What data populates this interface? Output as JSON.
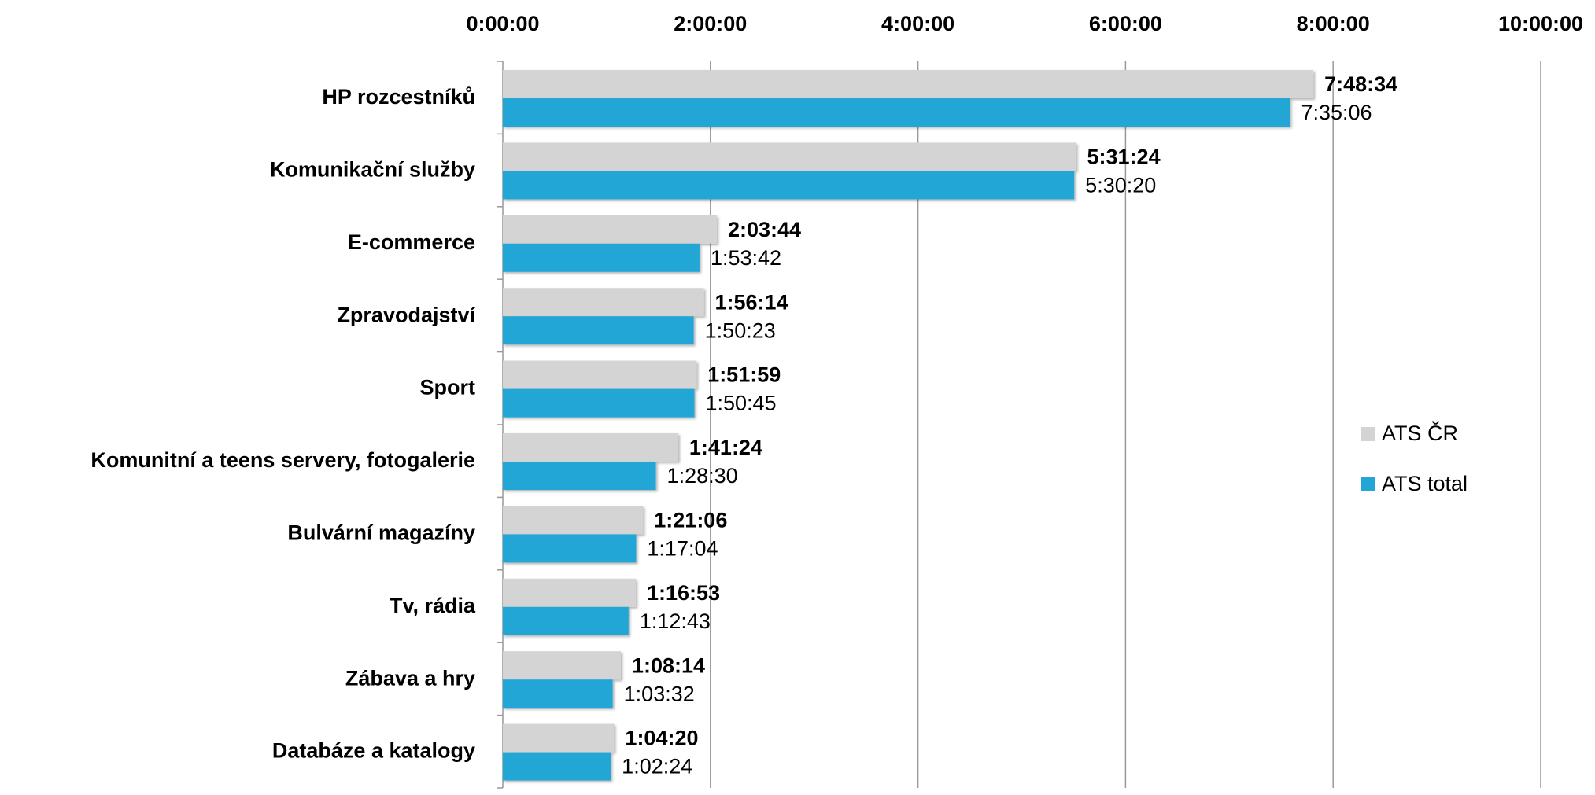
{
  "chart_data": {
    "type": "bar",
    "orientation": "horizontal",
    "categories": [
      "HP rozcestníků",
      "Komunikační služby",
      "E-commerce",
      "Zpravodajství",
      "Sport",
      "Komunitní a teens servery, fotogalerie",
      "Bulvární magazíny",
      "Tv, rádia",
      "Zábava a hry",
      "Databáze a katalogy"
    ],
    "series": [
      {
        "name": "ATS ČR",
        "color": "#d4d4d4",
        "values": [
          28114,
          19884,
          7424,
          6974,
          6719,
          6084,
          4866,
          4613,
          4094,
          3860
        ],
        "value_labels": [
          "7:48:34",
          "5:31:24",
          "2:03:44",
          "1:56:14",
          "1:51:59",
          "1:41:24",
          "1:21:06",
          "1:16:53",
          "1:08:14",
          "1:04:20"
        ]
      },
      {
        "name": "ATS total",
        "color": "#22a6d6",
        "values": [
          27306,
          19820,
          6822,
          6623,
          6645,
          5310,
          4624,
          4363,
          3812,
          3744
        ],
        "value_labels": [
          "7:35:06",
          "5:30:20",
          "1:53:42",
          "1:50:23",
          "1:50:45",
          "1:28:30",
          "1:17:04",
          "1:12:43",
          "1:03:32",
          "1:02:24"
        ]
      }
    ],
    "xlim": [
      0,
      36000
    ],
    "xticks": [
      {
        "value": 0,
        "label": "0:00:00"
      },
      {
        "value": 7200,
        "label": "2:00:00"
      },
      {
        "value": 14400,
        "label": "4:00:00"
      },
      {
        "value": 21600,
        "label": "6:00:00"
      },
      {
        "value": 28800,
        "label": "8:00:00"
      },
      {
        "value": 36000,
        "label": "10:00:00"
      }
    ],
    "grid": true,
    "legend": "right"
  }
}
